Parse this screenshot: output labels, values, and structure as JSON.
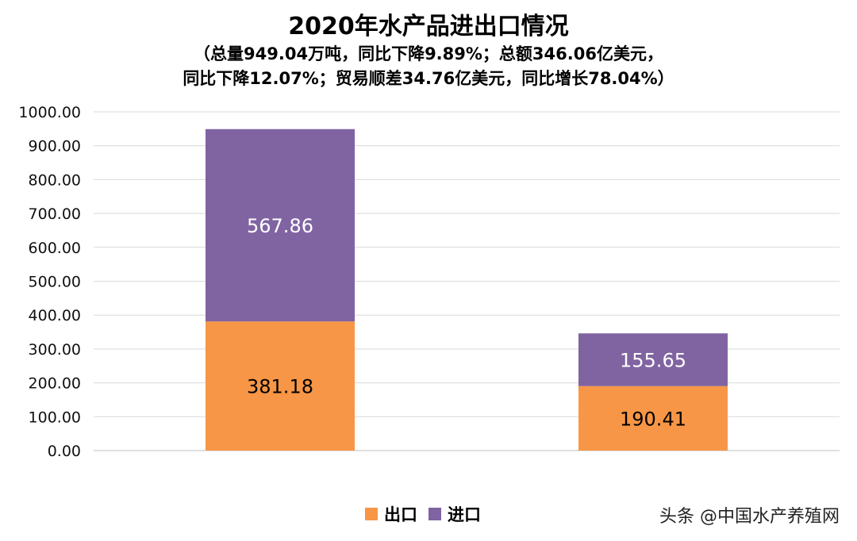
{
  "colors": {
    "export": "#F79646",
    "import": "#8064A2",
    "grid": "#D9D9D9",
    "axis": "#BFBFBF"
  },
  "watermark": "头条 @中国水产养殖网",
  "chart_data": {
    "type": "bar",
    "stacked": true,
    "title": "2020年水产品进出口情况",
    "subtitle_lines": [
      "（总量949.04万吨，同比下降9.89%；总额346.06亿美元，",
      "同比下降12.07%；贸易顺差34.76亿美元，同比增长78.04%）"
    ],
    "categories": [
      "",
      ""
    ],
    "series": [
      {
        "name": "出口",
        "values": [
          381.18,
          190.41
        ],
        "labels": [
          "381.18",
          "190.41"
        ]
      },
      {
        "name": "进口",
        "values": [
          567.86,
          155.65
        ],
        "labels": [
          "567.86",
          "155.65"
        ]
      }
    ],
    "ylim": [
      0,
      1000
    ],
    "yticks": [
      "0.00",
      "100.00",
      "200.00",
      "300.00",
      "400.00",
      "500.00",
      "600.00",
      "700.00",
      "800.00",
      "900.00",
      "1000.00"
    ],
    "grid": true,
    "legend": "bottom"
  }
}
